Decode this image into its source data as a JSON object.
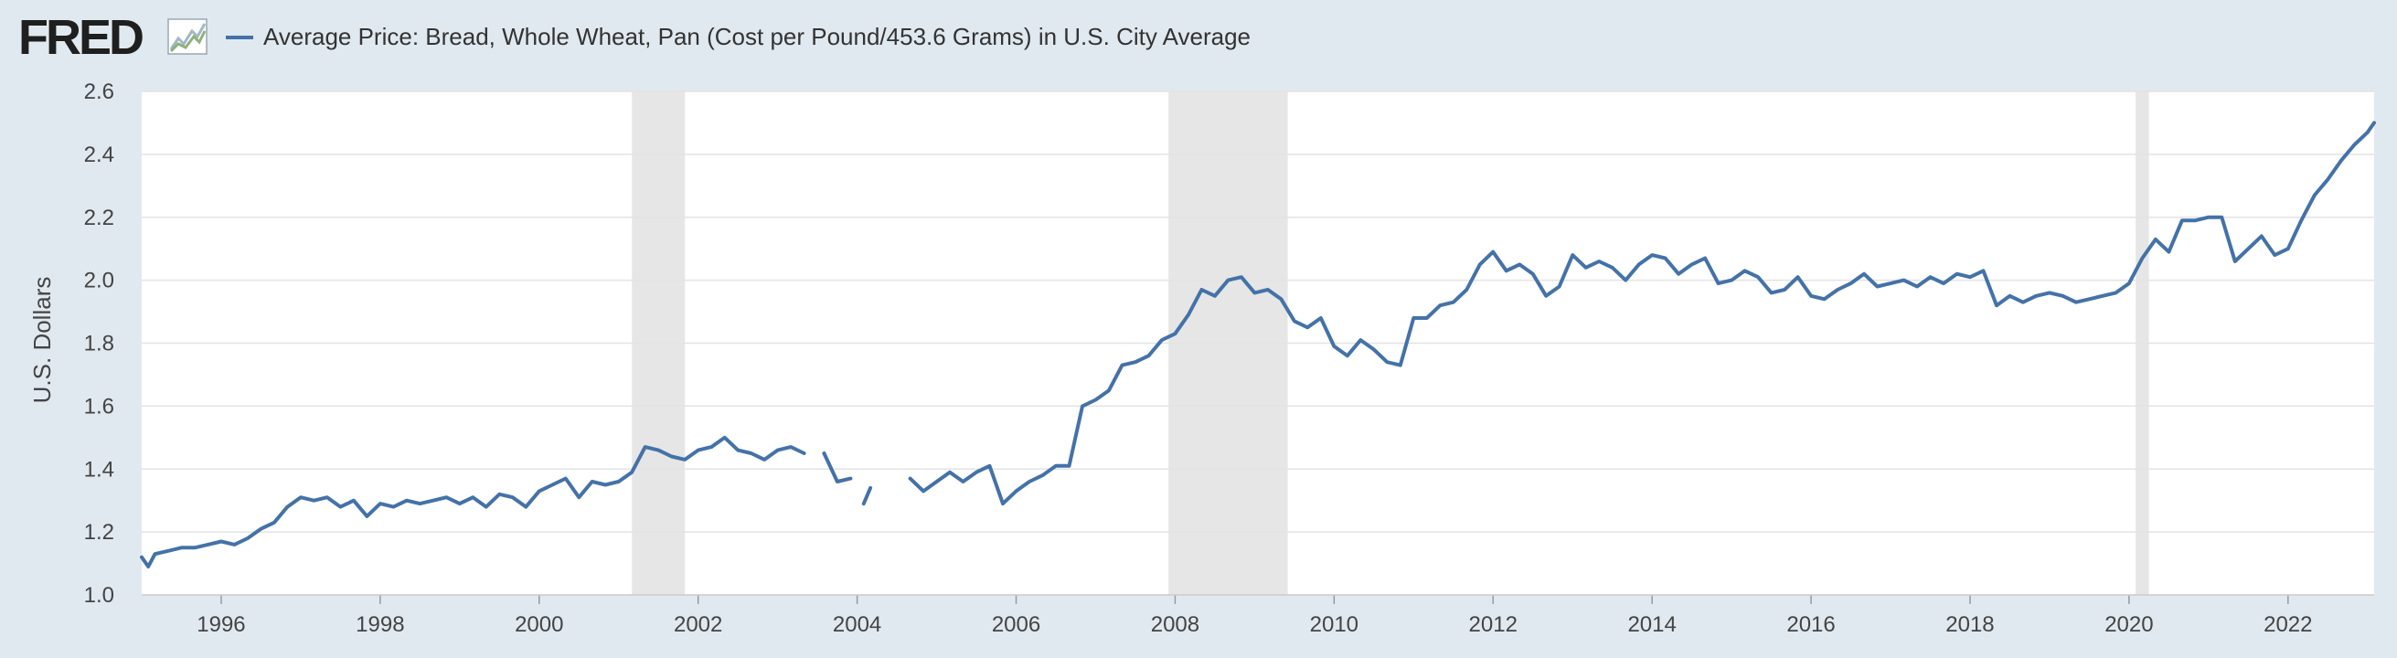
{
  "header": {
    "logo_text": "FRED",
    "logo_icon": "line-chart-icon",
    "legend_label": "Average Price: Bread, Whole Wheat, Pan (Cost per Pound/453.6 Grams) in U.S. City Average"
  },
  "colors": {
    "background": "#e1e9f0",
    "plot_background": "#ffffff",
    "series": "#4472a8",
    "recession": "#e6e6e6",
    "grid": "#e3e3e3"
  },
  "chart_data": {
    "type": "line",
    "title": "",
    "xlabel": "",
    "ylabel": "U.S. Dollars",
    "xlim": [
      "1995-01",
      "2023-02"
    ],
    "ylim": [
      1.0,
      2.6
    ],
    "y_ticks": [
      "1.0",
      "1.2",
      "1.4",
      "1.6",
      "1.8",
      "2.0",
      "2.2",
      "2.4",
      "2.6"
    ],
    "x_ticks": [
      "1996",
      "1998",
      "2000",
      "2002",
      "2004",
      "2006",
      "2008",
      "2010",
      "2012",
      "2014",
      "2016",
      "2018",
      "2020",
      "2022"
    ],
    "grid": true,
    "recessions": [
      {
        "start": "2001-03",
        "end": "2001-11"
      },
      {
        "start": "2007-12",
        "end": "2009-06"
      },
      {
        "start": "2020-02",
        "end": "2020-04"
      }
    ],
    "series": [
      {
        "name": "Average Price: Bread, Whole Wheat, Pan (Cost per Pound/453.6 Grams) in U.S. City Average",
        "points": [
          [
            "1995-01",
            1.12
          ],
          [
            "1995-02",
            1.09
          ],
          [
            "1995-03",
            1.13
          ],
          [
            "1995-05",
            1.14
          ],
          [
            "1995-07",
            1.15
          ],
          [
            "1995-09",
            1.15
          ],
          [
            "1995-11",
            1.16
          ],
          [
            "1996-01",
            1.17
          ],
          [
            "1996-03",
            1.16
          ],
          [
            "1996-05",
            1.18
          ],
          [
            "1996-07",
            1.21
          ],
          [
            "1996-09",
            1.23
          ],
          [
            "1996-11",
            1.28
          ],
          [
            "1997-01",
            1.31
          ],
          [
            "1997-03",
            1.3
          ],
          [
            "1997-05",
            1.31
          ],
          [
            "1997-07",
            1.28
          ],
          [
            "1997-09",
            1.3
          ],
          [
            "1997-11",
            1.25
          ],
          [
            "1998-01",
            1.29
          ],
          [
            "1998-03",
            1.28
          ],
          [
            "1998-05",
            1.3
          ],
          [
            "1998-07",
            1.29
          ],
          [
            "1998-09",
            1.3
          ],
          [
            "1998-11",
            1.31
          ],
          [
            "1999-01",
            1.29
          ],
          [
            "1999-03",
            1.31
          ],
          [
            "1999-05",
            1.28
          ],
          [
            "1999-07",
            1.32
          ],
          [
            "1999-09",
            1.31
          ],
          [
            "1999-11",
            1.28
          ],
          [
            "2000-01",
            1.33
          ],
          [
            "2000-03",
            1.35
          ],
          [
            "2000-05",
            1.37
          ],
          [
            "2000-07",
            1.31
          ],
          [
            "2000-09",
            1.36
          ],
          [
            "2000-11",
            1.35
          ],
          [
            "2001-01",
            1.36
          ],
          [
            "2001-03",
            1.39
          ],
          [
            "2001-05",
            1.47
          ],
          [
            "2001-07",
            1.46
          ],
          [
            "2001-09",
            1.44
          ],
          [
            "2001-11",
            1.43
          ],
          [
            "2002-01",
            1.46
          ],
          [
            "2002-03",
            1.47
          ],
          [
            "2002-05",
            1.5
          ],
          [
            "2002-07",
            1.46
          ],
          [
            "2002-09",
            1.45
          ],
          [
            "2002-11",
            1.43
          ],
          [
            "2003-01",
            1.46
          ],
          [
            "2003-03",
            1.47
          ],
          [
            "2003-05",
            1.45
          ],
          [
            "2003-07",
            null
          ],
          [
            "2003-08",
            1.45
          ],
          [
            "2003-10",
            1.36
          ],
          [
            "2003-12",
            1.37
          ],
          [
            "2004-01",
            null
          ],
          [
            "2004-02",
            1.29
          ],
          [
            "2004-03",
            1.34
          ],
          [
            "2004-04",
            null
          ],
          [
            "2004-09",
            1.37
          ],
          [
            "2004-11",
            1.33
          ],
          [
            "2005-01",
            1.36
          ],
          [
            "2005-03",
            1.39
          ],
          [
            "2005-05",
            1.36
          ],
          [
            "2005-07",
            1.39
          ],
          [
            "2005-09",
            1.41
          ],
          [
            "2005-11",
            1.29
          ],
          [
            "2006-01",
            1.33
          ],
          [
            "2006-03",
            1.36
          ],
          [
            "2006-05",
            1.38
          ],
          [
            "2006-07",
            1.41
          ],
          [
            "2006-09",
            1.41
          ],
          [
            "2006-11",
            1.6
          ],
          [
            "2007-01",
            1.62
          ],
          [
            "2007-03",
            1.65
          ],
          [
            "2007-05",
            1.73
          ],
          [
            "2007-07",
            1.74
          ],
          [
            "2007-09",
            1.76
          ],
          [
            "2007-11",
            1.81
          ],
          [
            "2008-01",
            1.83
          ],
          [
            "2008-03",
            1.89
          ],
          [
            "2008-05",
            1.97
          ],
          [
            "2008-07",
            1.95
          ],
          [
            "2008-09",
            2.0
          ],
          [
            "2008-11",
            2.01
          ],
          [
            "2009-01",
            1.96
          ],
          [
            "2009-03",
            1.97
          ],
          [
            "2009-05",
            1.94
          ],
          [
            "2009-07",
            1.87
          ],
          [
            "2009-09",
            1.85
          ],
          [
            "2009-11",
            1.88
          ],
          [
            "2010-01",
            1.79
          ],
          [
            "2010-03",
            1.76
          ],
          [
            "2010-05",
            1.81
          ],
          [
            "2010-07",
            1.78
          ],
          [
            "2010-09",
            1.74
          ],
          [
            "2010-11",
            1.73
          ],
          [
            "2011-01",
            1.88
          ],
          [
            "2011-03",
            1.88
          ],
          [
            "2011-05",
            1.92
          ],
          [
            "2011-07",
            1.93
          ],
          [
            "2011-09",
            1.97
          ],
          [
            "2011-11",
            2.05
          ],
          [
            "2012-01",
            2.09
          ],
          [
            "2012-03",
            2.03
          ],
          [
            "2012-05",
            2.05
          ],
          [
            "2012-07",
            2.02
          ],
          [
            "2012-09",
            1.95
          ],
          [
            "2012-11",
            1.98
          ],
          [
            "2013-01",
            2.08
          ],
          [
            "2013-03",
            2.04
          ],
          [
            "2013-05",
            2.06
          ],
          [
            "2013-07",
            2.04
          ],
          [
            "2013-09",
            2.0
          ],
          [
            "2013-11",
            2.05
          ],
          [
            "2014-01",
            2.08
          ],
          [
            "2014-03",
            2.07
          ],
          [
            "2014-05",
            2.02
          ],
          [
            "2014-07",
            2.05
          ],
          [
            "2014-09",
            2.07
          ],
          [
            "2014-11",
            1.99
          ],
          [
            "2015-01",
            2.0
          ],
          [
            "2015-03",
            2.03
          ],
          [
            "2015-05",
            2.01
          ],
          [
            "2015-07",
            1.96
          ],
          [
            "2015-09",
            1.97
          ],
          [
            "2015-11",
            2.01
          ],
          [
            "2016-01",
            1.95
          ],
          [
            "2016-03",
            1.94
          ],
          [
            "2016-05",
            1.97
          ],
          [
            "2016-07",
            1.99
          ],
          [
            "2016-09",
            2.02
          ],
          [
            "2016-11",
            1.98
          ],
          [
            "2017-01",
            1.99
          ],
          [
            "2017-03",
            2.0
          ],
          [
            "2017-05",
            1.98
          ],
          [
            "2017-07",
            2.01
          ],
          [
            "2017-09",
            1.99
          ],
          [
            "2017-11",
            2.02
          ],
          [
            "2018-01",
            2.01
          ],
          [
            "2018-03",
            2.03
          ],
          [
            "2018-05",
            1.92
          ],
          [
            "2018-07",
            1.95
          ],
          [
            "2018-09",
            1.93
          ],
          [
            "2018-11",
            1.95
          ],
          [
            "2019-01",
            1.96
          ],
          [
            "2019-03",
            1.95
          ],
          [
            "2019-05",
            1.93
          ],
          [
            "2019-07",
            1.94
          ],
          [
            "2019-09",
            1.95
          ],
          [
            "2019-11",
            1.96
          ],
          [
            "2020-01",
            1.99
          ],
          [
            "2020-03",
            2.07
          ],
          [
            "2020-05",
            2.13
          ],
          [
            "2020-07",
            2.09
          ],
          [
            "2020-09",
            2.19
          ],
          [
            "2020-11",
            2.19
          ],
          [
            "2021-01",
            2.2
          ],
          [
            "2021-03",
            2.2
          ],
          [
            "2021-05",
            2.06
          ],
          [
            "2021-07",
            2.1
          ],
          [
            "2021-09",
            2.14
          ],
          [
            "2021-11",
            2.08
          ],
          [
            "2022-01",
            2.1
          ],
          [
            "2022-03",
            2.19
          ],
          [
            "2022-05",
            2.27
          ],
          [
            "2022-07",
            2.32
          ],
          [
            "2022-09",
            2.38
          ],
          [
            "2022-11",
            2.43
          ],
          [
            "2023-01",
            2.47
          ],
          [
            "2023-02",
            2.5
          ]
        ]
      }
    ]
  }
}
